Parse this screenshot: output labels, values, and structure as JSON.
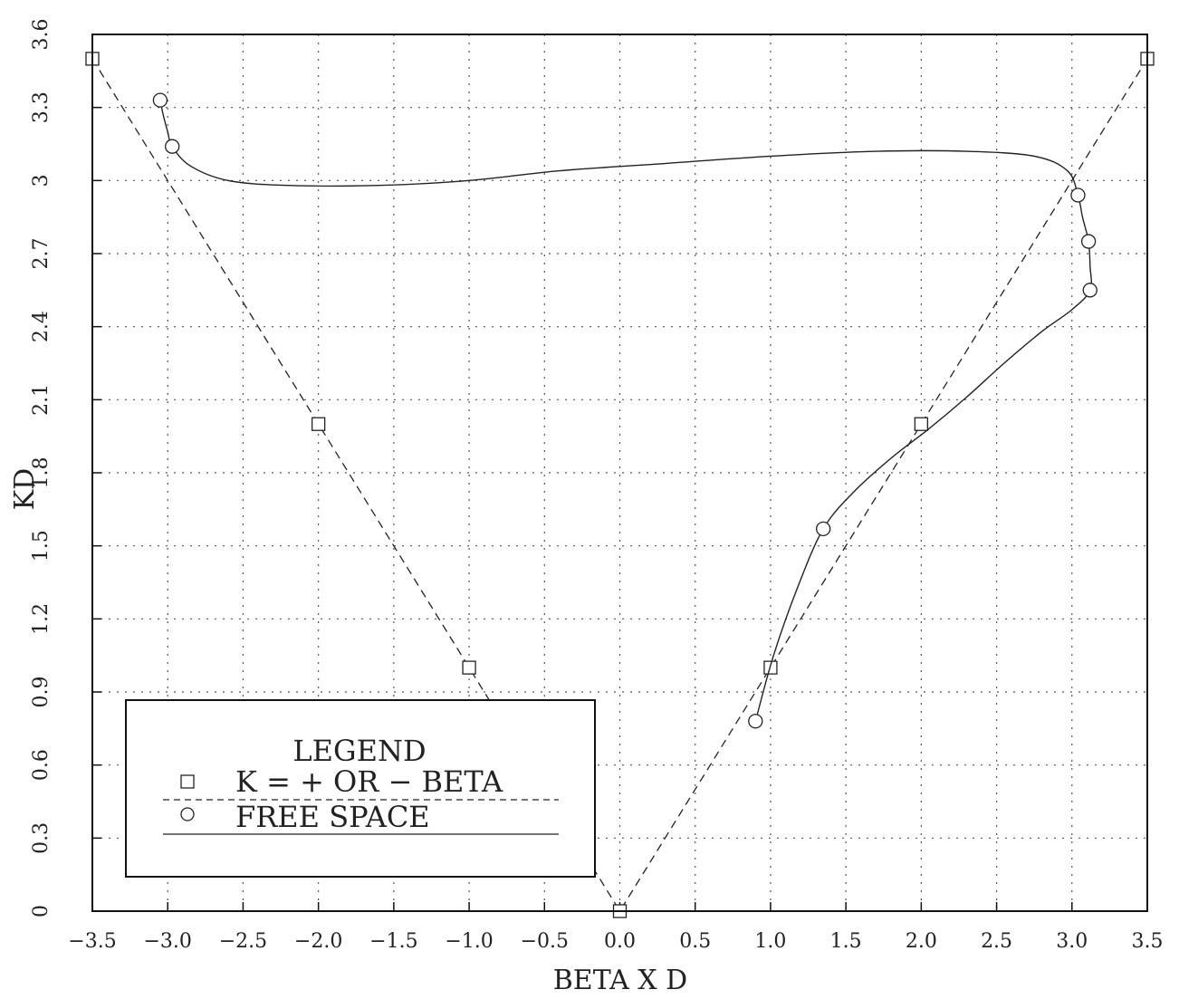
{
  "chart_data": {
    "type": "line",
    "xlabel": "BETA X D",
    "ylabel": "KD",
    "xlim": [
      -3.5,
      3.5
    ],
    "ylim": [
      0,
      3.6
    ],
    "x_ticks": [
      -3.5,
      -3.0,
      -2.5,
      -2.0,
      -1.5,
      -1.0,
      -0.5,
      0.0,
      0.5,
      1.0,
      1.5,
      2.0,
      2.5,
      3.0,
      3.5
    ],
    "x_tick_labels": [
      "−3.5",
      "−3.0",
      "−2.5",
      "−2.0",
      "−1.5",
      "−1.0",
      "−0.5",
      "0.0",
      "0.5",
      "1.0",
      "1.5",
      "2.0",
      "2.5",
      "3.0",
      "3.5"
    ],
    "y_ticks": [
      0,
      0.3,
      0.6,
      0.9,
      1.2,
      1.5,
      1.8,
      2.1,
      2.4,
      2.7,
      3.0,
      3.3,
      3.6
    ],
    "y_tick_labels": [
      "0",
      "0.3",
      "0.6",
      "0.9",
      "1.2",
      "1.5",
      "1.8",
      "2.1",
      "2.4",
      "2.7",
      "3",
      "3.3",
      "3.6"
    ],
    "grid": true,
    "legend": {
      "title": "LEGEND",
      "placement": "bottom-left"
    },
    "series": [
      {
        "name": "K = + OR − BETA",
        "marker": "square",
        "line": "dashed",
        "x": [
          -3.5,
          -2.0,
          -1.0,
          0.0,
          1.0,
          2.0,
          3.5
        ],
        "y": [
          3.5,
          2.0,
          1.0,
          0.0,
          1.0,
          2.0,
          3.5
        ]
      },
      {
        "name": "FREE SPACE",
        "marker": "circle",
        "line": "solid",
        "x": [
          0.9,
          1.35,
          3.12,
          3.11,
          3.04,
          -2.97,
          -3.05
        ],
        "y": [
          0.78,
          1.57,
          2.55,
          2.75,
          2.94,
          3.14,
          3.33
        ],
        "curve_x": [
          0.9,
          1.02,
          1.18,
          1.35,
          1.55,
          1.8,
          2.05,
          2.3,
          2.55,
          2.8,
          3.0,
          3.12,
          3.12,
          3.11,
          3.07,
          3.04,
          2.97,
          2.75,
          2.3,
          1.7,
          1.0,
          0.3,
          -0.4,
          -1.0,
          -1.6,
          -2.2,
          -2.6,
          -2.85,
          -2.97,
          -3.0,
          -3.03,
          -3.05
        ],
        "curve_y": [
          0.78,
          1.05,
          1.33,
          1.57,
          1.72,
          1.86,
          1.98,
          2.11,
          2.25,
          2.38,
          2.47,
          2.55,
          2.65,
          2.75,
          2.85,
          2.94,
          3.04,
          3.1,
          3.12,
          3.12,
          3.1,
          3.07,
          3.04,
          3.0,
          2.98,
          2.98,
          3.0,
          3.06,
          3.14,
          3.2,
          3.27,
          3.33
        ]
      }
    ]
  }
}
